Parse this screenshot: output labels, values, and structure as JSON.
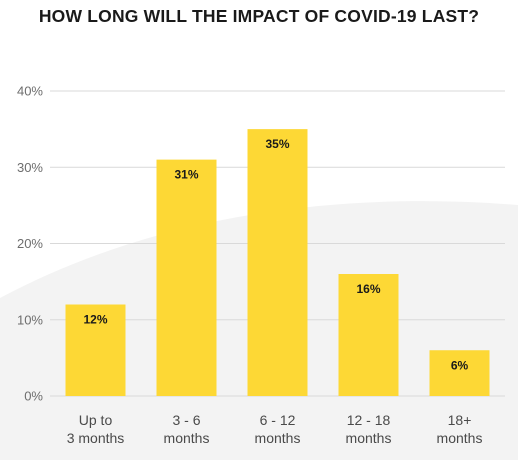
{
  "chart_data": {
    "type": "bar",
    "title": "HOW LONG WILL THE IMPACT OF COVID-19 LAST?",
    "categories": [
      [
        "Up to",
        "3 months"
      ],
      [
        "3 - 6",
        "months"
      ],
      [
        "6 - 12",
        "months"
      ],
      [
        "12 - 18",
        "months"
      ],
      [
        "18+",
        "months"
      ]
    ],
    "values": [
      12,
      31,
      35,
      16,
      6
    ],
    "data_labels": [
      "12%",
      "31%",
      "35%",
      "16%",
      "6%"
    ],
    "yticks": [
      0,
      10,
      20,
      30,
      40
    ],
    "ytick_labels": [
      "0%",
      "10%",
      "20%",
      "30%",
      "40%"
    ],
    "ylim": [
      0,
      40
    ],
    "xlabel": "",
    "ylabel": "",
    "grid": true,
    "legend": "none",
    "bar_color": "#FDD835",
    "grid_color": "#d9d9d9",
    "background_swoosh_color": "#f3f3f3"
  }
}
